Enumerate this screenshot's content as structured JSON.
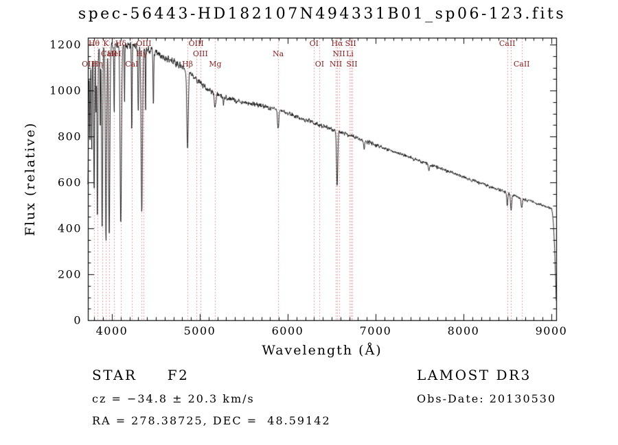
{
  "title": "spec-56443-HD182107N494331B01_sp06-123.fits",
  "colors": {
    "background": "#ffffff",
    "axis": "#000000",
    "spectrum": "#000000",
    "marker_line": "#cc7272",
    "marker_label": "#8b2020"
  },
  "footer": {
    "class_label": "STAR     F2",
    "cz": "cz = −34.8 ± 20.3 km/s",
    "radec": "RA = 278.38725, DEC =  48.59142",
    "survey": "LAMOST DR3",
    "obs_date": "Obs-Date: 20130530"
  },
  "chart_data": {
    "type": "line",
    "title": "spec-56443-HD182107N494331B01_sp06-123.fits",
    "xlabel": "Wavelength (Å)",
    "ylabel": "Flux (relative)",
    "xlim": [
      3727,
      9055
    ],
    "ylim": [
      0,
      1230
    ],
    "x_ticks": [
      4000,
      5000,
      6000,
      7000,
      8000,
      9000
    ],
    "y_ticks": [
      0,
      200,
      400,
      600,
      800,
      1000,
      1200
    ],
    "grid": false,
    "continuum": [
      [
        3727,
        1030
      ],
      [
        3740,
        1085
      ],
      [
        3760,
        1120
      ],
      [
        3780,
        1145
      ],
      [
        3800,
        1158
      ],
      [
        3840,
        1168
      ],
      [
        3880,
        1174
      ],
      [
        3920,
        1180
      ],
      [
        3960,
        1185
      ],
      [
        4000,
        1190
      ],
      [
        4060,
        1196
      ],
      [
        4120,
        1200
      ],
      [
        4180,
        1200
      ],
      [
        4240,
        1196
      ],
      [
        4300,
        1192
      ],
      [
        4360,
        1186
      ],
      [
        4420,
        1178
      ],
      [
        4480,
        1166
      ],
      [
        4540,
        1152
      ],
      [
        4600,
        1142
      ],
      [
        4660,
        1132
      ],
      [
        4720,
        1120
      ],
      [
        4780,
        1108
      ],
      [
        4840,
        1094
      ],
      [
        4900,
        1072
      ],
      [
        4960,
        1048
      ],
      [
        5020,
        1026
      ],
      [
        5080,
        1008
      ],
      [
        5140,
        994
      ],
      [
        5200,
        982
      ],
      [
        5300,
        968
      ],
      [
        5400,
        958
      ],
      [
        5500,
        950
      ],
      [
        5600,
        942
      ],
      [
        5700,
        934
      ],
      [
        5800,
        926
      ],
      [
        5900,
        916
      ],
      [
        6000,
        901
      ],
      [
        6100,
        887
      ],
      [
        6200,
        873
      ],
      [
        6300,
        859
      ],
      [
        6400,
        846
      ],
      [
        6500,
        833
      ],
      [
        6600,
        819
      ],
      [
        6700,
        805
      ],
      [
        6800,
        791
      ],
      [
        6900,
        777
      ],
      [
        7000,
        764
      ],
      [
        7100,
        750
      ],
      [
        7200,
        736
      ],
      [
        7300,
        722
      ],
      [
        7400,
        708
      ],
      [
        7500,
        694
      ],
      [
        7600,
        680
      ],
      [
        7700,
        666
      ],
      [
        7800,
        652
      ],
      [
        7900,
        638
      ],
      [
        8000,
        624
      ],
      [
        8100,
        610
      ],
      [
        8200,
        596
      ],
      [
        8300,
        582
      ],
      [
        8400,
        568
      ],
      [
        8500,
        554
      ],
      [
        8600,
        540
      ],
      [
        8700,
        526
      ],
      [
        8800,
        513
      ],
      [
        8900,
        500
      ],
      [
        8960,
        492
      ],
      [
        9000,
        486
      ],
      [
        9012,
        468
      ],
      [
        9024,
        415
      ],
      [
        9036,
        320
      ],
      [
        9048,
        190
      ],
      [
        9055,
        85
      ]
    ],
    "absorption_lines": [
      [
        3727,
        600,
        5
      ],
      [
        3750,
        780,
        4
      ],
      [
        3771,
        720,
        4
      ],
      [
        3798,
        555,
        5
      ],
      [
        3819,
        880,
        3
      ],
      [
        3835,
        440,
        5
      ],
      [
        3868,
        850,
        3
      ],
      [
        3889,
        395,
        6
      ],
      [
        3933,
        360,
        7
      ],
      [
        3970,
        375,
        7
      ],
      [
        4026,
        900,
        4
      ],
      [
        4101,
        420,
        8
      ],
      [
        4144,
        950,
        3
      ],
      [
        4226,
        820,
        4
      ],
      [
        4300,
        912,
        5
      ],
      [
        4340,
        465,
        8
      ],
      [
        4383,
        890,
        3
      ],
      [
        4472,
        930,
        4
      ],
      [
        4861,
        740,
        8
      ],
      [
        5175,
        928,
        9
      ],
      [
        5270,
        946,
        6
      ],
      [
        5892,
        830,
        7
      ],
      [
        6563,
        585,
        7
      ],
      [
        6870,
        742,
        6
      ],
      [
        7605,
        652,
        7
      ],
      [
        8498,
        505,
        6
      ],
      [
        8542,
        478,
        7
      ],
      [
        8662,
        490,
        7
      ]
    ],
    "noise": {
      "seed": 7,
      "blue_amp": 15,
      "mid_amp": 9,
      "red_amp": 6
    },
    "spectral_markers": [
      {
        "wavelength": 3727,
        "label": "OII",
        "row": 3
      },
      {
        "wavelength": 3798,
        "label": "Hθ",
        "row": 1
      },
      {
        "wavelength": 3835,
        "label": "Hη",
        "row": 3
      },
      {
        "wavelength": 3889,
        "label": "",
        "row": 1
      },
      {
        "wavelength": 3933,
        "label": "K",
        "row": 1
      },
      {
        "wavelength": 3968,
        "label": "CaII",
        "row": 2
      },
      {
        "wavelength": 4026,
        "label": "HeI",
        "row": 2
      },
      {
        "wavelength": 4101,
        "label": "Hδ",
        "row": 1
      },
      {
        "wavelength": 4226,
        "label": "CaI",
        "row": 3
      },
      {
        "wavelength": 4340,
        "label": "Hγ",
        "row": 2
      },
      {
        "wavelength": 4363,
        "label": "OIII",
        "row": 1
      },
      {
        "wavelength": 4861,
        "label": "Hβ",
        "row": 3
      },
      {
        "wavelength": 4959,
        "label": "OIII",
        "row": 1
      },
      {
        "wavelength": 5007,
        "label": "OIII",
        "row": 2
      },
      {
        "wavelength": 5175,
        "label": "Mg",
        "row": 3
      },
      {
        "wavelength": 5892,
        "label": "Na",
        "row": 2
      },
      {
        "wavelength": 6300,
        "label": "OI",
        "row": 1
      },
      {
        "wavelength": 6363,
        "label": "OI",
        "row": 3
      },
      {
        "wavelength": 6548,
        "label": "NII",
        "row": 3
      },
      {
        "wavelength": 6563,
        "label": "Hα",
        "row": 1
      },
      {
        "wavelength": 6583,
        "label": "NII",
        "row": 2
      },
      {
        "wavelength": 6707,
        "label": "Li",
        "row": 2
      },
      {
        "wavelength": 6716,
        "label": "SII",
        "row": 1
      },
      {
        "wavelength": 6731,
        "label": "SII",
        "row": 3
      },
      {
        "wavelength": 8498,
        "label": "CaII",
        "row": 1
      },
      {
        "wavelength": 8542,
        "label": "",
        "row": 1
      },
      {
        "wavelength": 8662,
        "label": "CaII",
        "row": 3
      }
    ]
  }
}
